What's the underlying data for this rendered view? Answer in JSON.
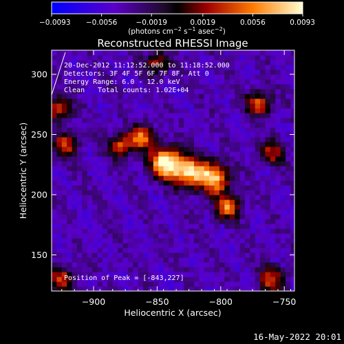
{
  "chart_data": {
    "type": "heatmap",
    "title": "Reconstructed RHESSI Image",
    "xlabel": "Heliocentric X (arcsec)",
    "ylabel": "Heliocentric Y (arcsec)",
    "x_range": [
      -933,
      -742
    ],
    "y_range": [
      120,
      320
    ],
    "x_ticks": [
      -900,
      -850,
      -800,
      -750
    ],
    "x_tick_labels": [
      "−900",
      "−850",
      "−800",
      "−750"
    ],
    "y_ticks": [
      150,
      200,
      250,
      300
    ],
    "y_tick_labels": [
      "150",
      "200",
      "250",
      "300"
    ],
    "colorbar": {
      "min": -0.0093,
      "max": 0.0093,
      "ticks": [
        -0.0093,
        -0.0056,
        -0.0019,
        0.0019,
        0.0056,
        0.0093
      ],
      "tick_labels": [
        "−0.0093",
        "−0.0056",
        "−0.0019",
        "0.0019",
        "0.0056",
        "0.0093"
      ],
      "unit_parts": [
        "(photons cm",
        "−2",
        " s",
        "−1",
        " asec",
        "−2",
        ")"
      ]
    },
    "sources": [
      {
        "x": -843,
        "y": 227,
        "peak": 0.0093
      },
      {
        "x": -825,
        "y": 219,
        "peak": 0.0072
      },
      {
        "x": -805,
        "y": 214,
        "peak": 0.0074
      },
      {
        "x": -795,
        "y": 190,
        "peak": 0.0055
      },
      {
        "x": -862,
        "y": 248,
        "peak": 0.0052
      },
      {
        "x": -878,
        "y": 241,
        "peak": 0.004
      },
      {
        "x": -770,
        "y": 276,
        "peak": 0.0045
      },
      {
        "x": -927,
        "y": 272,
        "peak": 0.0038
      },
      {
        "x": -922,
        "y": 242,
        "peak": 0.0032
      },
      {
        "x": -925,
        "y": 130,
        "peak": 0.0032
      },
      {
        "x": -760,
        "y": 130,
        "peak": 0.004
      },
      {
        "x": -850,
        "y": 310,
        "peak": 0.0022
      },
      {
        "x": -760,
        "y": 235,
        "peak": 0.0024
      }
    ],
    "legend_lines": [
      "20-Dec-2012 11:12:52.000 to 11:18:52.000",
      "Detectors: 3F 4F 5F 6F 7F 8F, Att 0",
      "Energy Range: 6.0 - 12.0 keV"
    ],
    "clean_label": "Clean",
    "total_counts_label": "Total counts: 1.02E+04",
    "peak_label": "Position of Peak = [-843,227]",
    "colors": {
      "background": "#000000",
      "text": "#ffffff"
    }
  },
  "footer": {
    "timestamp": "16-May-2022 20:01"
  }
}
